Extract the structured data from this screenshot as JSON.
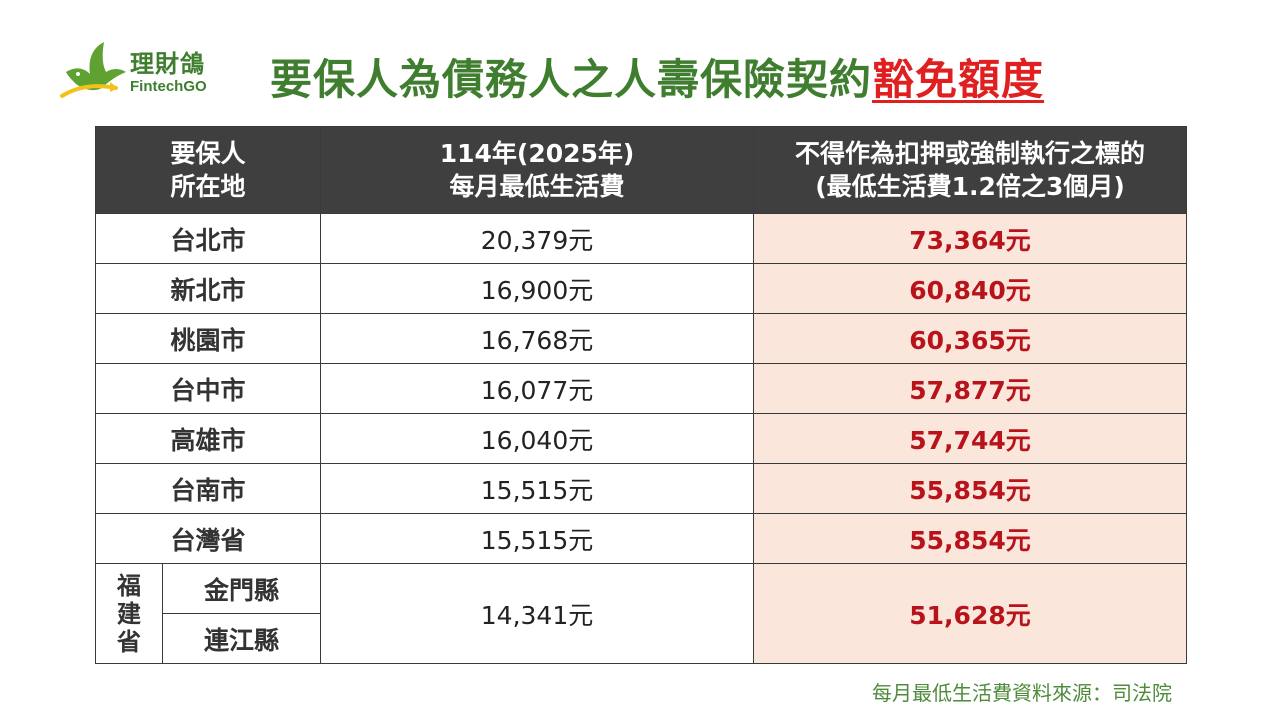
{
  "logo": {
    "name_cn": "理財鴿",
    "name_en": "FintechGO"
  },
  "title": {
    "main": "要保人為債務人之人壽保險契約",
    "highlight": "豁免額度"
  },
  "table": {
    "headers": {
      "location_line1": "要保人",
      "location_line2": "所在地",
      "cost_line1": "114年(2025年)",
      "cost_line2": "每月最低生活費",
      "exempt_line1": "不得作為扣押或強制執行之標的",
      "exempt_line2": "(最低生活費1.2倍之3個月)"
    },
    "rows": [
      {
        "location": "台北市",
        "cost": "20,379元",
        "exempt": "73,364元"
      },
      {
        "location": "新北市",
        "cost": "16,900元",
        "exempt": "60,840元"
      },
      {
        "location": "桃園市",
        "cost": "16,768元",
        "exempt": "60,365元"
      },
      {
        "location": "台中市",
        "cost": "16,077元",
        "exempt": "57,877元"
      },
      {
        "location": "高雄市",
        "cost": "16,040元",
        "exempt": "57,744元"
      },
      {
        "location": "台南市",
        "cost": "15,515元",
        "exempt": "55,854元"
      },
      {
        "location": "台灣省",
        "cost": "15,515元",
        "exempt": "55,854元"
      }
    ],
    "fujian": {
      "province": [
        "福",
        "建",
        "省"
      ],
      "county1": "金門縣",
      "county2": "連江縣",
      "cost": "14,341元",
      "exempt": "51,628元"
    }
  },
  "source": "每月最低生活費資料來源：司法院",
  "colors": {
    "brand_green": "#3f7d2f",
    "highlight_red": "#e02020",
    "header_bg": "#3f3f3f",
    "exempt_bg": "#fbe6dc",
    "exempt_text": "#b8121b"
  }
}
